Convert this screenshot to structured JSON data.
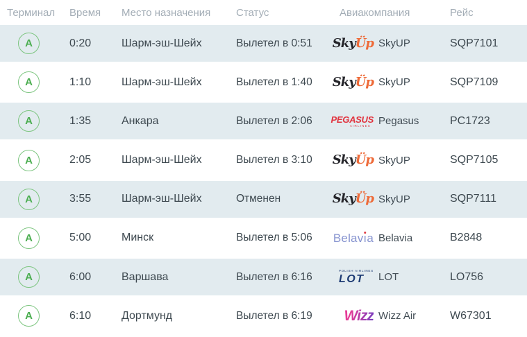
{
  "header": {
    "columns": [
      "Терминал",
      "Время",
      "Место назначения",
      "Статус",
      "Авиакомпания",
      "Рейс"
    ]
  },
  "rows": [
    {
      "terminal": "A",
      "time": "0:20",
      "destination": "Шарм-эш-Шейх",
      "status": "Вылетел в 0:51",
      "airline": "SkyUP",
      "airline_logo": "skyup",
      "flight": "SQP7101"
    },
    {
      "terminal": "A",
      "time": "1:10",
      "destination": "Шарм-эш-Шейх",
      "status": "Вылетел в 1:40",
      "airline": "SkyUP",
      "airline_logo": "skyup",
      "flight": "SQP7109"
    },
    {
      "terminal": "A",
      "time": "1:35",
      "destination": "Анкара",
      "status": "Вылетел в 2:06",
      "airline": "Pegasus",
      "airline_logo": "pegasus",
      "flight": "PC1723"
    },
    {
      "terminal": "A",
      "time": "2:05",
      "destination": "Шарм-эш-Шейх",
      "status": "Вылетел в 3:10",
      "airline": "SkyUP",
      "airline_logo": "skyup",
      "flight": "SQP7105"
    },
    {
      "terminal": "A",
      "time": "3:55",
      "destination": "Шарм-эш-Шейх",
      "status": "Отменен",
      "airline": "SkyUP",
      "airline_logo": "skyup",
      "flight": "SQP7111"
    },
    {
      "terminal": "A",
      "time": "5:00",
      "destination": "Минск",
      "status": "Вылетел в 5:06",
      "airline": "Belavia",
      "airline_logo": "belavia",
      "flight": "B2848"
    },
    {
      "terminal": "A",
      "time": "6:00",
      "destination": "Варшава",
      "status": "Вылетел в 6:16",
      "airline": "LOT",
      "airline_logo": "lot",
      "flight": "LO756"
    },
    {
      "terminal": "A",
      "time": "6:10",
      "destination": "Дортмунд",
      "status": "Вылетел в 6:19",
      "airline": "Wizz Air",
      "airline_logo": "wizz",
      "flight": "W67301"
    }
  ],
  "logos": {
    "skyup": {
      "script_dark": "Sky",
      "script_orange": "Üp"
    },
    "pegasus": {
      "main": "PEGASUS",
      "sub": "AIRLINES"
    },
    "belavia": {
      "text": "Belavia"
    },
    "lot": {
      "sub": "POLISH AIRLINES",
      "main": "LOT"
    },
    "wizz": {
      "text": "Wizz"
    }
  },
  "colors": {
    "row_alt_bg": "#e2ebef",
    "terminal_green": "#4cae51",
    "terminal_ring": "#7cc57f",
    "header_text": "#a3adb6",
    "body_text": "#3e4950",
    "skyup_orange": "#ee6a38",
    "pegasus_red": "#e1343f",
    "belavia_blue": "#8794d0",
    "belavia_dot_red": "#e0393f",
    "lot_navy": "#1c3a73",
    "wizz_magenta": "#e53c98",
    "wizz_purple": "#7b3bbd"
  }
}
